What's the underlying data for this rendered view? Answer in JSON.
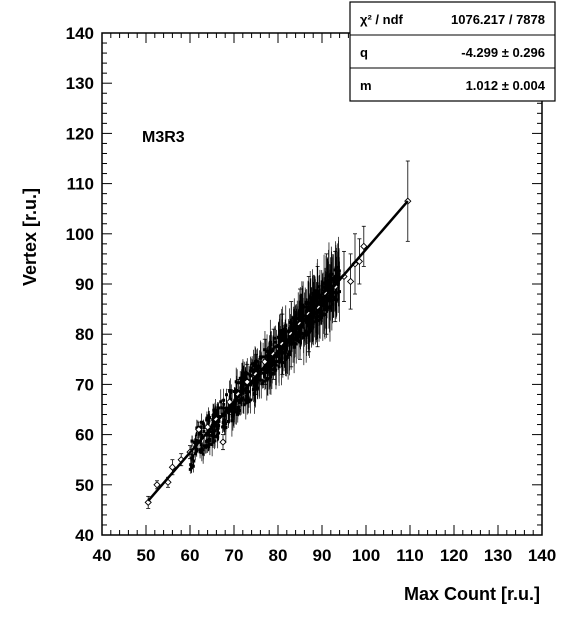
{
  "chart_data": {
    "type": "scatter",
    "title": "",
    "xlabel": "Max Count [r.u.]",
    "ylabel": "Vertex [r.u.]",
    "xlim": [
      40,
      140
    ],
    "ylim": [
      40,
      140
    ],
    "x_ticks": [
      "40",
      "50",
      "60",
      "70",
      "80",
      "90",
      "100",
      "110",
      "120",
      "130",
      "140"
    ],
    "y_ticks": [
      "40",
      "50",
      "60",
      "70",
      "80",
      "90",
      "100",
      "110",
      "120",
      "130",
      "140"
    ],
    "grid": false,
    "annotation": "M3R3",
    "fit": {
      "q": -4.299,
      "m": 1.012,
      "x_range": [
        50.5,
        109.5
      ]
    },
    "points": [
      {
        "x": 50.5,
        "y": 46.5,
        "err": 1.2
      },
      {
        "x": 52.5,
        "y": 50.0,
        "err": 0.8
      },
      {
        "x": 55.0,
        "y": 50.5,
        "err": 1.0
      },
      {
        "x": 56.0,
        "y": 53.5,
        "err": 1.5
      },
      {
        "x": 58.0,
        "y": 55.0,
        "err": 1.2
      },
      {
        "x": 60.0,
        "y": 56.5,
        "err": 1.3
      },
      {
        "x": 62.0,
        "y": 61.0,
        "err": 1.5
      },
      {
        "x": 64.0,
        "y": 61.5,
        "err": 1.8
      },
      {
        "x": 66.0,
        "y": 63.0,
        "err": 2.0
      },
      {
        "x": 67.5,
        "y": 58.5,
        "err": 1.5
      },
      {
        "x": 69.0,
        "y": 66.5,
        "err": 2.5
      },
      {
        "x": 71.0,
        "y": 68.0,
        "err": 3.0
      },
      {
        "x": 73.0,
        "y": 70.5,
        "err": 3.5
      },
      {
        "x": 75.0,
        "y": 72.0,
        "err": 4.0
      },
      {
        "x": 77.0,
        "y": 74.5,
        "err": 4.5
      },
      {
        "x": 79.0,
        "y": 76.0,
        "err": 5.0
      },
      {
        "x": 81.0,
        "y": 78.0,
        "err": 6.0
      },
      {
        "x": 83.0,
        "y": 80.0,
        "err": 6.5
      },
      {
        "x": 85.0,
        "y": 82.0,
        "err": 7.0
      },
      {
        "x": 87.0,
        "y": 84.0,
        "err": 7.5
      },
      {
        "x": 89.0,
        "y": 85.5,
        "err": 8.0
      },
      {
        "x": 91.0,
        "y": 88.0,
        "err": 8.0
      },
      {
        "x": 93.0,
        "y": 89.5,
        "err": 7.0
      },
      {
        "x": 95.0,
        "y": 91.5,
        "err": 5.0
      },
      {
        "x": 96.5,
        "y": 90.5,
        "err": 5.5
      },
      {
        "x": 97.5,
        "y": 94.0,
        "err": 6.0
      },
      {
        "x": 98.5,
        "y": 94.5,
        "err": 4.5
      },
      {
        "x": 99.5,
        "y": 97.5,
        "err": 4.0
      },
      {
        "x": 109.5,
        "y": 106.5,
        "err": 8.0
      }
    ],
    "stats_box": {
      "rows": [
        {
          "label": "χ² / ndf",
          "value": "1076.217 / 7878"
        },
        {
          "label": "q",
          "value": "-4.299 ± 0.296"
        },
        {
          "label": "m",
          "value": "1.012 ± 0.004"
        }
      ]
    }
  }
}
